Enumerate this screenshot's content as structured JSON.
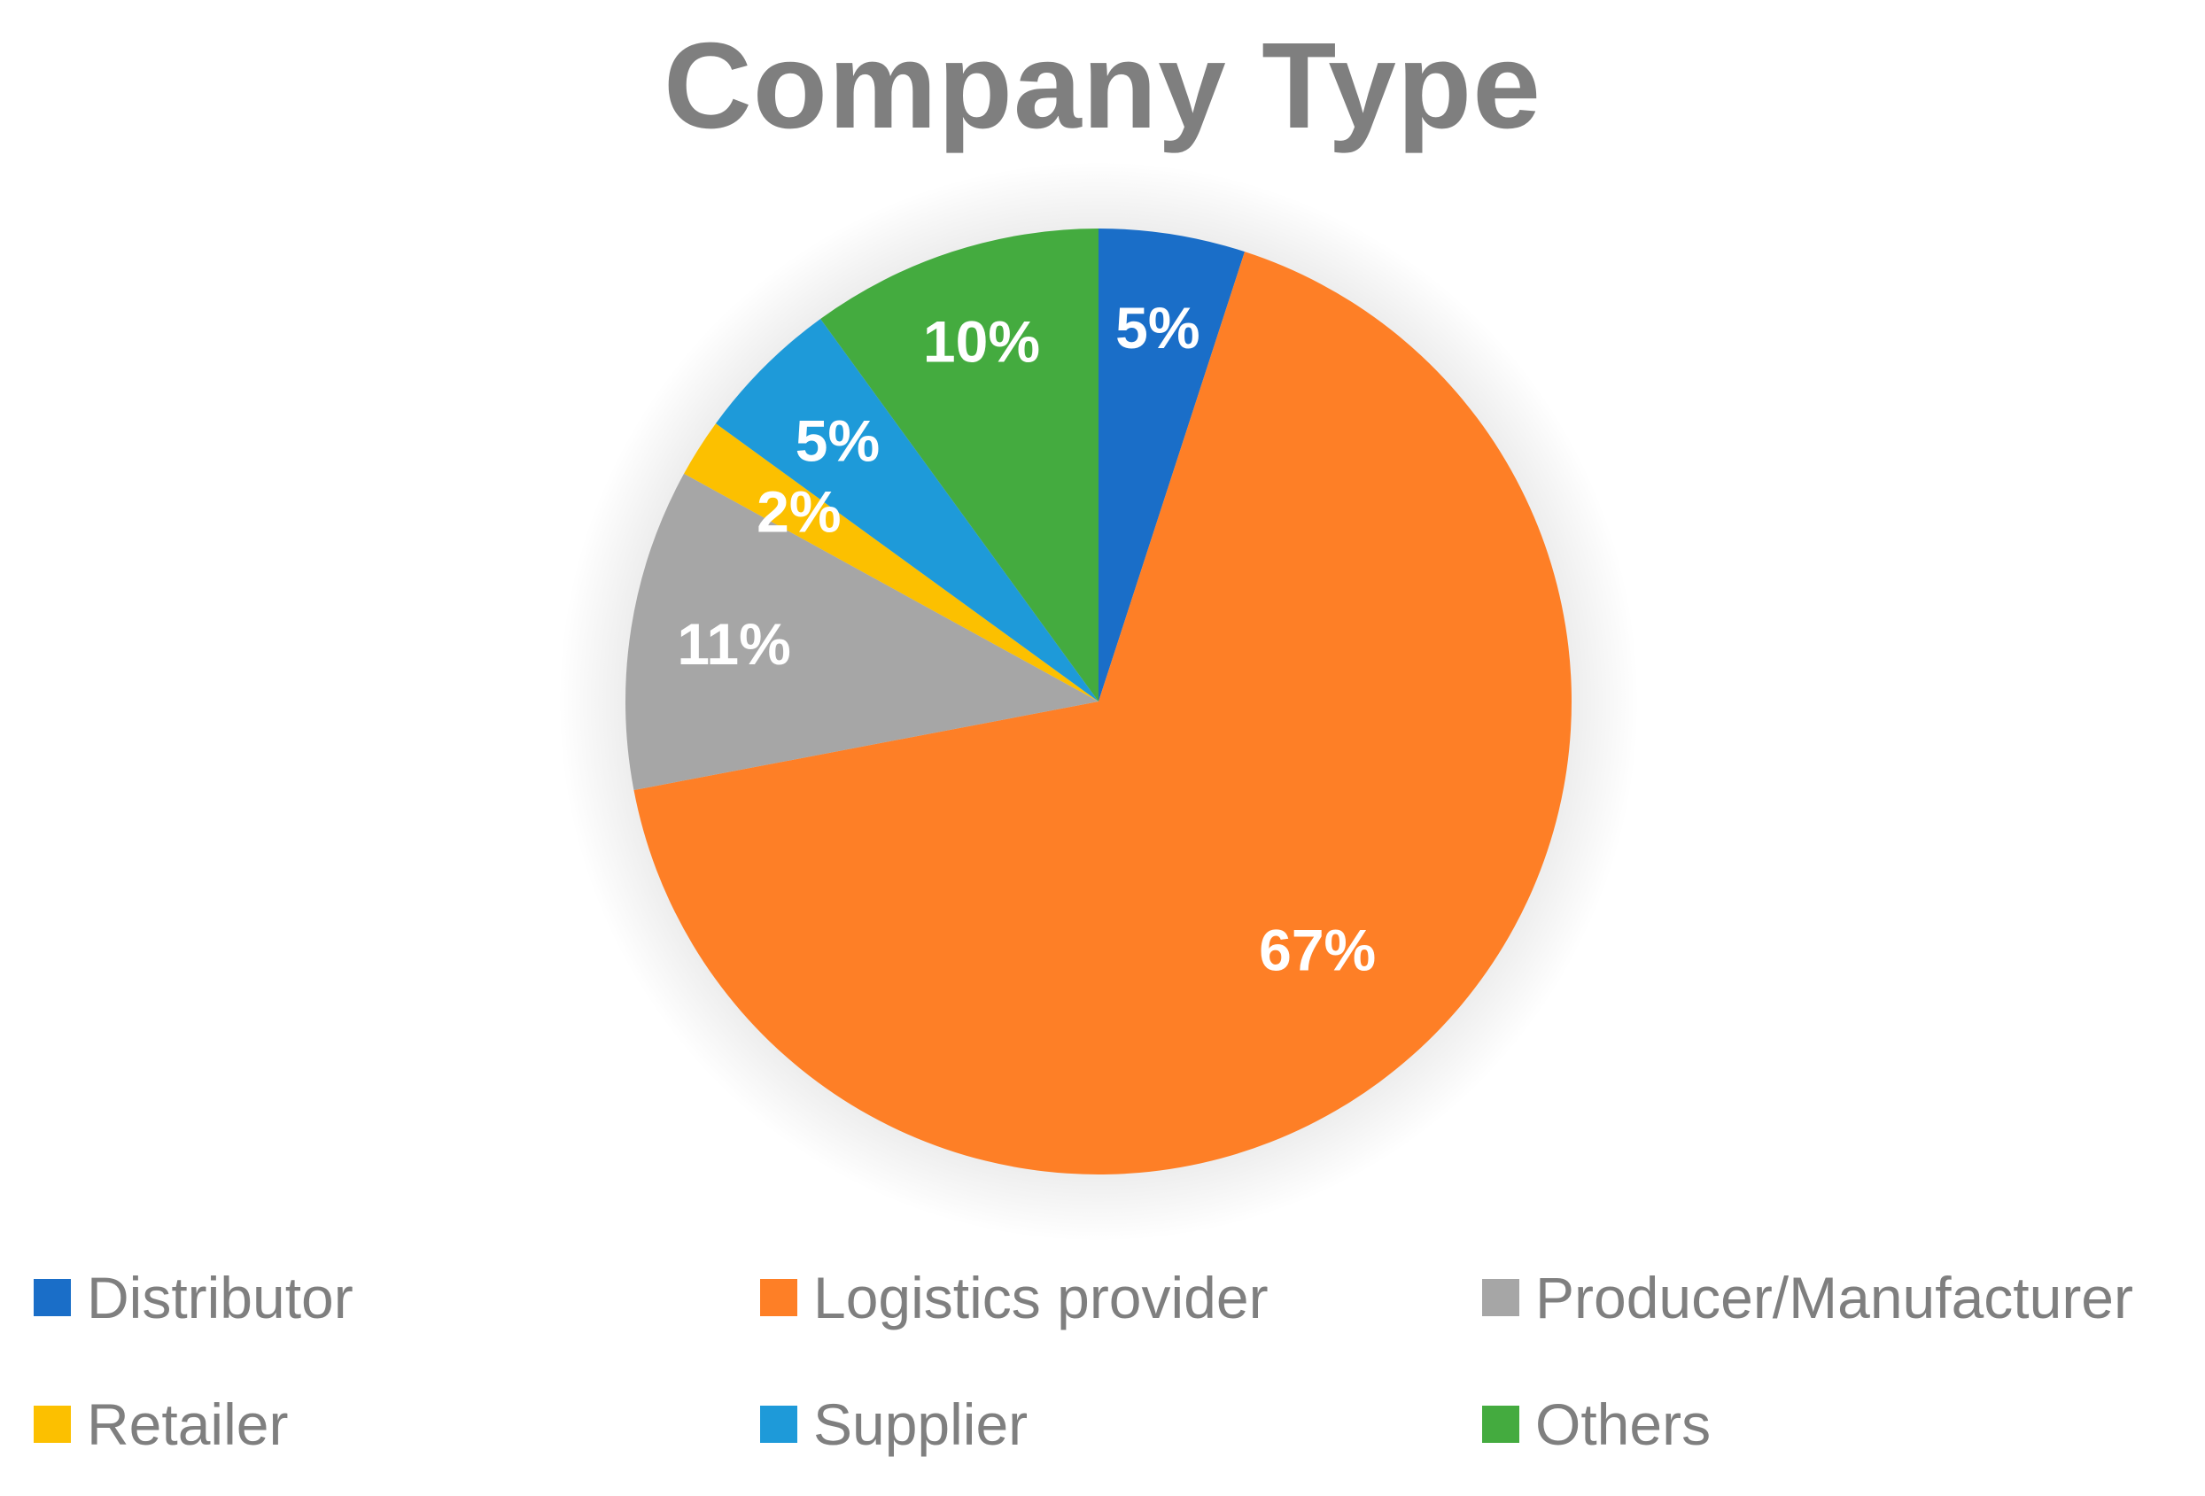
{
  "chart_data": {
    "type": "pie",
    "title": "Company Type",
    "categories": [
      "Distributor",
      "Logistics provider",
      "Producer/Manufacturer",
      "Retailer",
      "Supplier",
      "Others"
    ],
    "values": [
      5,
      67,
      11,
      2,
      5,
      10
    ],
    "data_labels": [
      "5%",
      "67%",
      "11%",
      "2%",
      "5%",
      "10%"
    ],
    "colors": [
      "#1a6ec8",
      "#fe7f26",
      "#a6a6a6",
      "#fcc000",
      "#1e9ad9",
      "#44ab3f"
    ],
    "legend_position": "bottom",
    "start_angle": "12 o'clock",
    "direction": "clockwise"
  }
}
